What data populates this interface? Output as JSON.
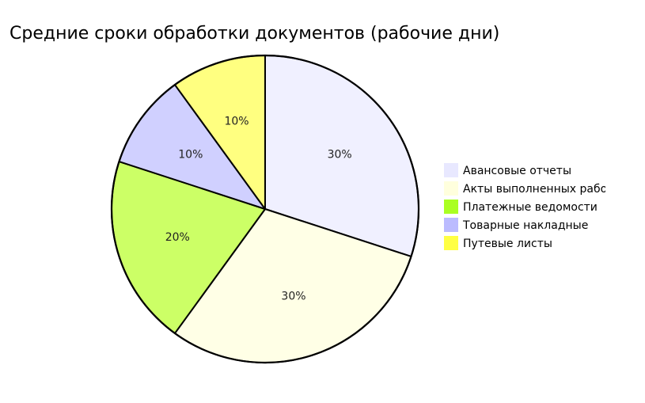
{
  "chart_data": {
    "type": "pie",
    "title": "Средние сроки обработки документов (рабочие дни)",
    "categories": [
      "Авансовые отчеты",
      "Акты выполненных работ",
      "Платежные ведомости",
      "Товарные накладные",
      "Путевые листы"
    ],
    "values": [
      30,
      30,
      20,
      10,
      10
    ],
    "data_labels": [
      "30%",
      "30%",
      "20%",
      "10%",
      "10%"
    ],
    "colors": [
      "#f0f0ff",
      "#ffffe6",
      "#ccff66",
      "#d0d0ff",
      "#ffff80"
    ],
    "legend_colors": [
      "#e8e8ff",
      "#ffffdd",
      "#aaff22",
      "#bbbbff",
      "#ffff44"
    ],
    "start_angle_deg": 90,
    "direction": "clockwise",
    "legend_placement": "right"
  }
}
